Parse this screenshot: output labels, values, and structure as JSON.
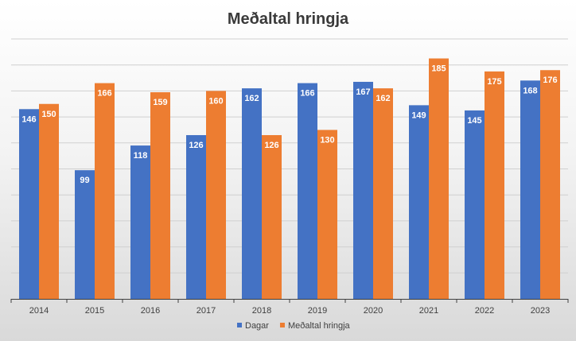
{
  "chart_data": {
    "type": "bar",
    "title": "Meðaltal hringja",
    "categories": [
      "2014",
      "2015",
      "2016",
      "2017",
      "2018",
      "2019",
      "2020",
      "2021",
      "2022",
      "2023"
    ],
    "series": [
      {
        "name": "Dagar",
        "color": "#4472C4",
        "values": [
          146,
          99,
          118,
          126,
          162,
          166,
          167,
          149,
          145,
          168
        ]
      },
      {
        "name": "Meðaltal hringja",
        "color": "#ED7D31",
        "values": [
          150,
          166,
          159,
          160,
          126,
          130,
          162,
          185,
          175,
          176
        ]
      }
    ],
    "ylim": [
      0,
      200
    ],
    "grid": true,
    "legend_position": "bottom",
    "data_labels": true
  }
}
